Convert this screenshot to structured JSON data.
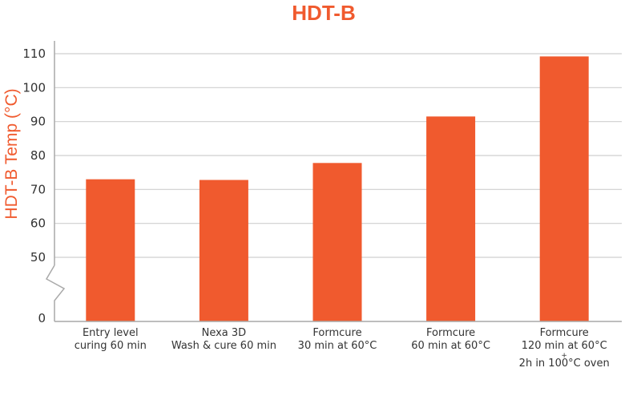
{
  "colors": {
    "bar": "#f05a2e",
    "title": "#f05a2e",
    "grid": "#cfcfcf",
    "axis": "#a9a9a9",
    "text": "#333333"
  },
  "chart_data": {
    "type": "bar",
    "title": "HDT-B",
    "xlabel": "",
    "ylabel": "HDT-B Temp (°C)",
    "ylim": [
      0,
      110
    ],
    "axis_break": [
      0,
      50
    ],
    "yticks": [
      110,
      100,
      90,
      80,
      70,
      60,
      50,
      0
    ],
    "grid": true,
    "categories": [
      [
        "Entry level",
        "curing 60 min"
      ],
      [
        "Nexa 3D",
        "Wash & cure 60 min"
      ],
      [
        "Formcure",
        "30 min at 60°C"
      ],
      [
        "Formcure",
        "60 min at 60°C"
      ],
      [
        "Formcure",
        "120 min at 60°C",
        "+",
        "2h in 100°C oven"
      ]
    ],
    "values": [
      73,
      72.8,
      77.8,
      91.5,
      109.2
    ]
  }
}
